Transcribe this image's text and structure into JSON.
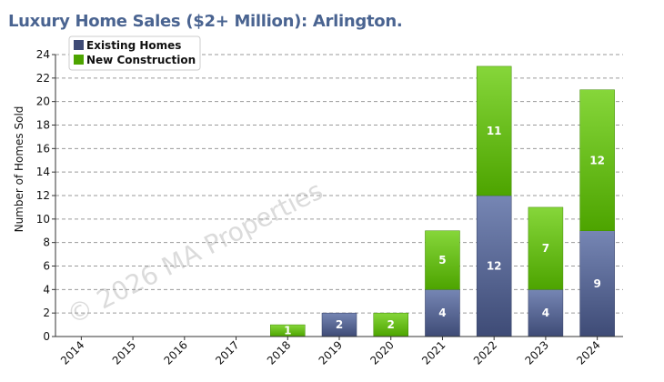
{
  "colors": {
    "existing_top": "#7686b4",
    "existing_bottom": "#3e4b76",
    "new_top": "#86d63a",
    "new_bottom": "#4da400",
    "title": "#4a6491",
    "grid": "#9a9a9a"
  },
  "watermark": "© 2026 MA Properties",
  "chart_data": {
    "type": "bar",
    "stacked": true,
    "title": "Luxury Home Sales ($2+ Million): Arlington.",
    "xlabel": "",
    "ylabel": "Number of Homes Sold",
    "ylim": [
      0,
      24
    ],
    "yticks": [
      0,
      2,
      4,
      6,
      8,
      10,
      12,
      14,
      16,
      18,
      20,
      22,
      24
    ],
    "grid": true,
    "legend_position": "top-left",
    "categories": [
      "2014",
      "2015",
      "2016",
      "2017",
      "2018",
      "2019",
      "2020",
      "2021",
      "2022",
      "2023",
      "2024"
    ],
    "series": [
      {
        "name": "Existing Homes",
        "values": [
          0,
          0,
          0,
          0,
          0,
          2,
          0,
          4,
          12,
          4,
          9
        ]
      },
      {
        "name": "New Construction",
        "values": [
          0,
          0,
          0,
          0,
          1,
          0,
          2,
          5,
          11,
          7,
          12
        ]
      }
    ]
  }
}
